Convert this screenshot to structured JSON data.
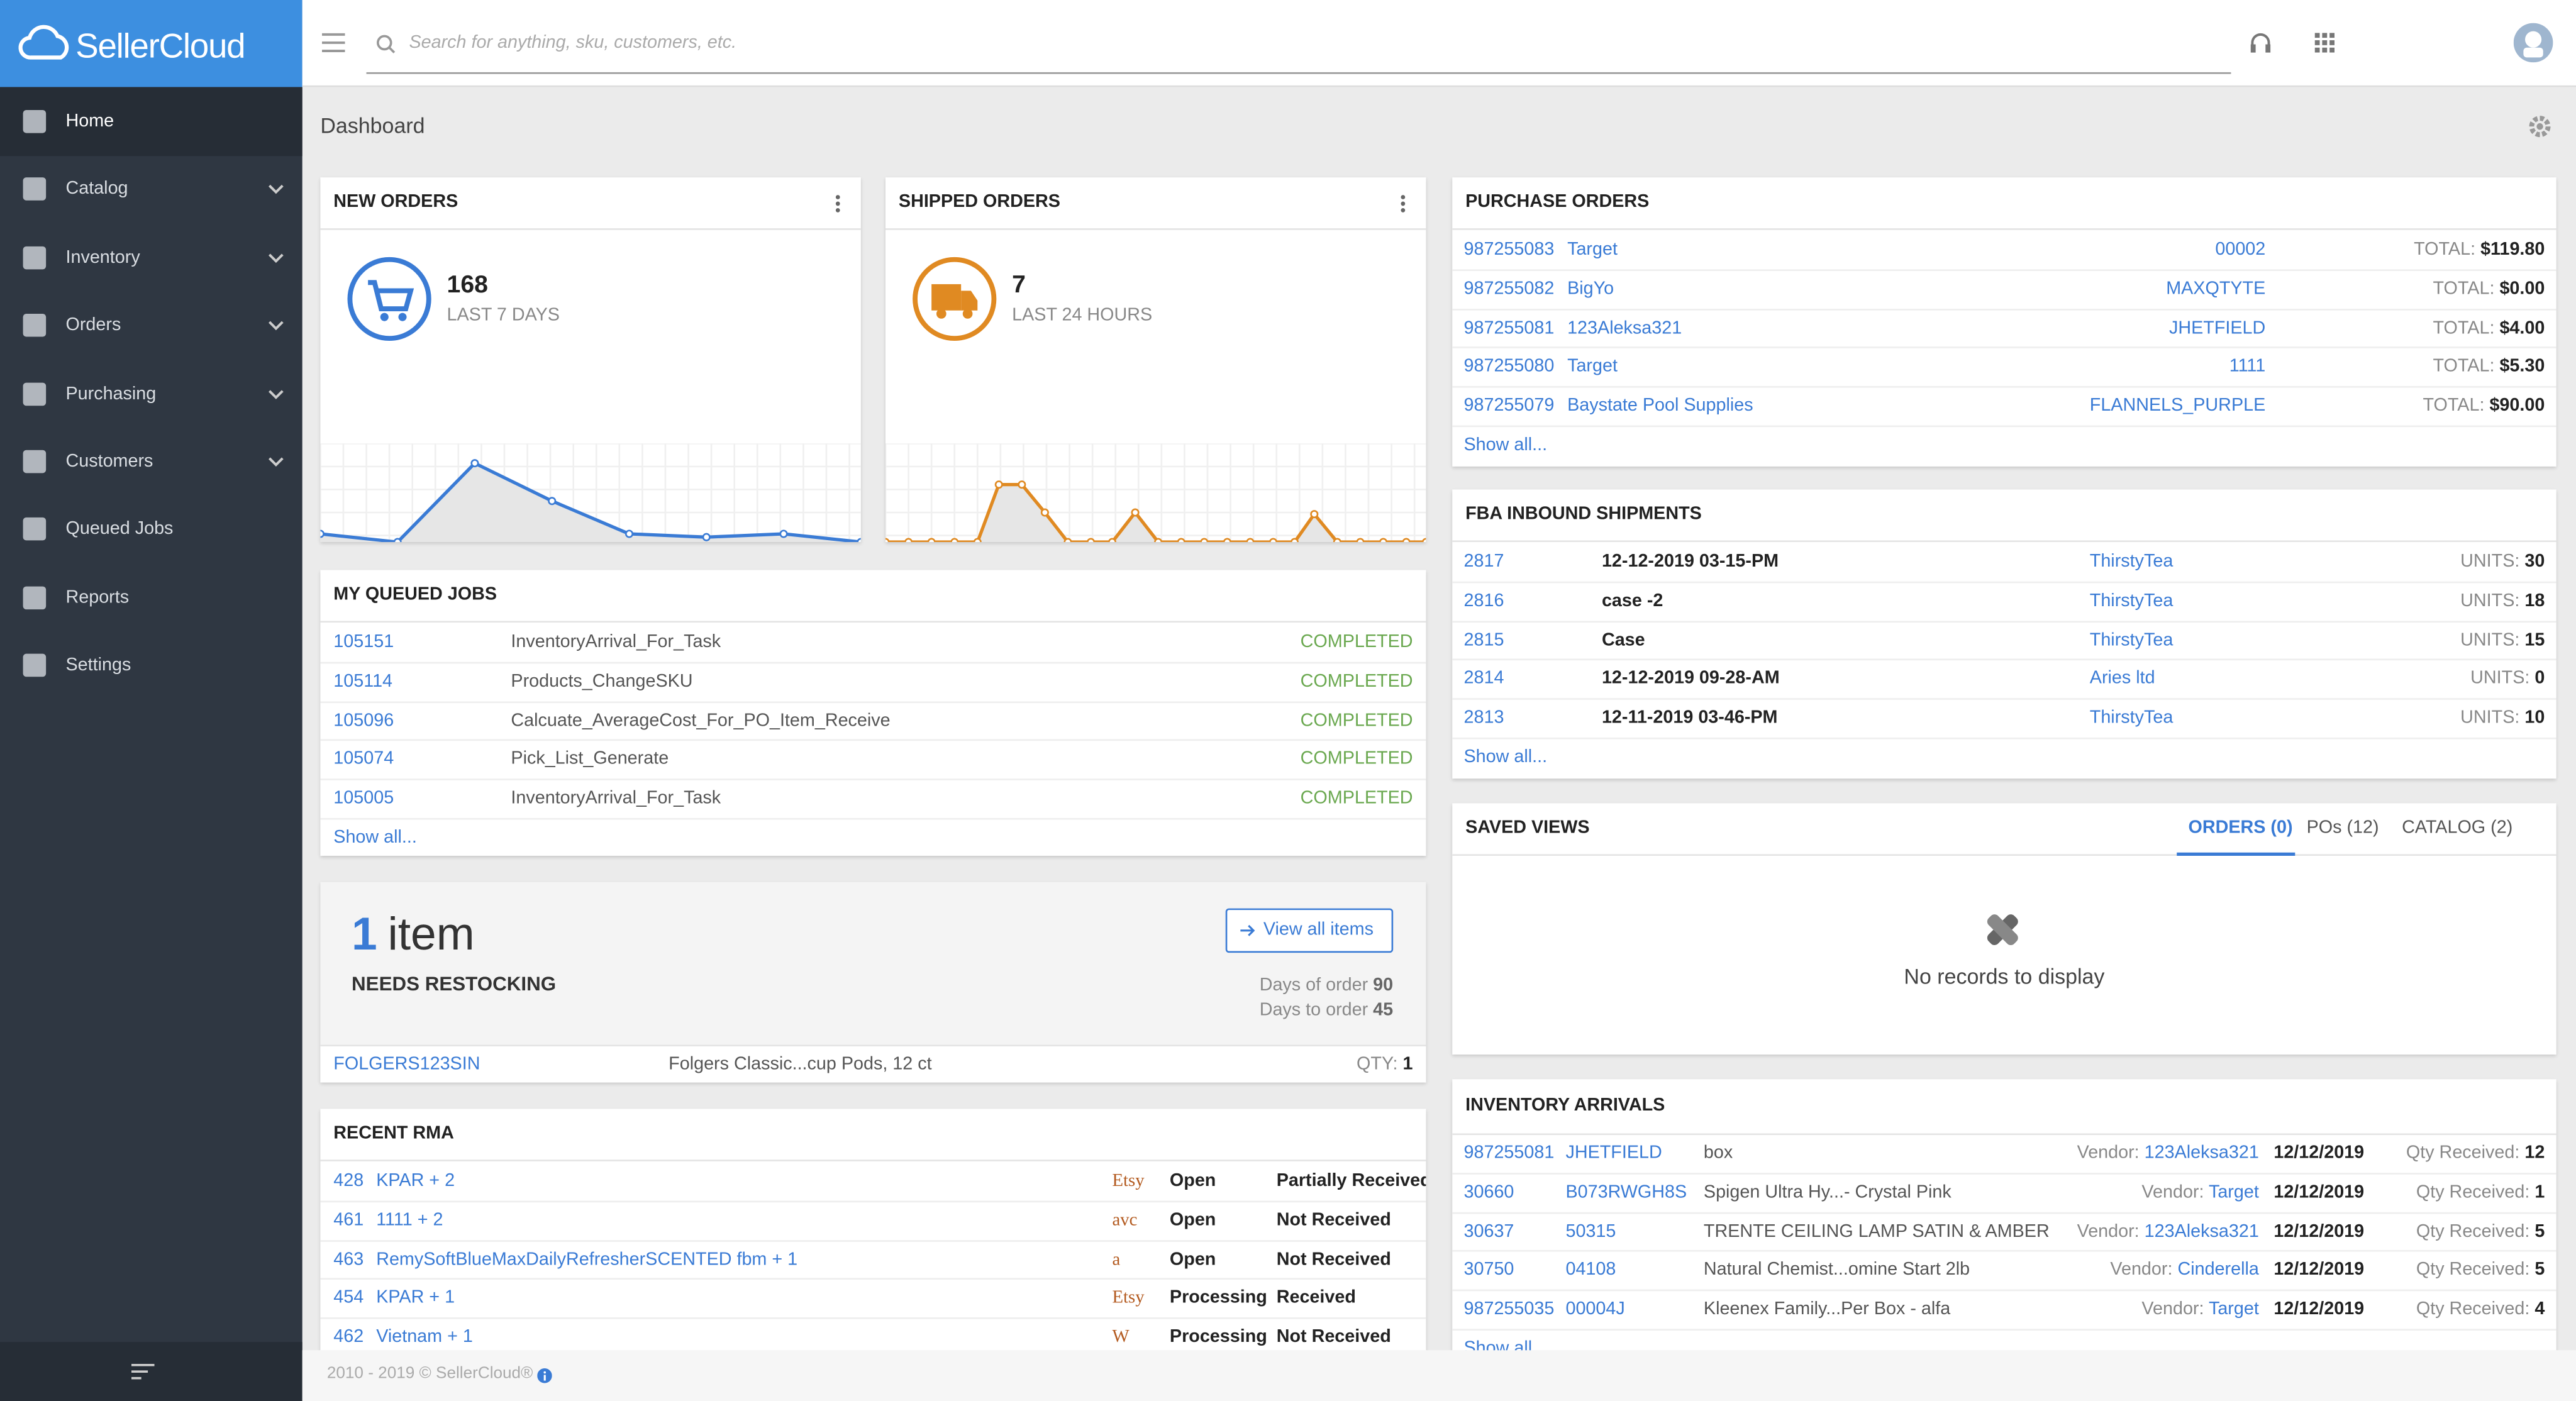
{
  "header": {
    "brand": "SellerCloud",
    "search_placeholder": "Search for anything, sku, customers, etc."
  },
  "sidebar": {
    "items": [
      "Home",
      "Catalog",
      "Inventory",
      "Orders",
      "Purchasing",
      "Customers",
      "Queued Jobs",
      "Reports",
      "Settings"
    ]
  },
  "page_title": "Dashboard",
  "new_orders": {
    "title": "NEW ORDERS",
    "count": "168",
    "period": "LAST 7 DAYS"
  },
  "shipped_orders": {
    "title": "SHIPPED ORDERS",
    "count": "7",
    "period": "LAST 24 HOURS"
  },
  "queued_jobs": {
    "title": "MY QUEUED JOBS",
    "rows": [
      [
        "105151",
        "InventoryArrival_For_Task",
        "COMPLETED"
      ],
      [
        "105114",
        "Products_ChangeSKU",
        "COMPLETED"
      ],
      [
        "105096",
        "Calcuate_AverageCost_For_PO_Item_Receive",
        "COMPLETED"
      ],
      [
        "105074",
        "Pick_List_Generate",
        "COMPLETED"
      ],
      [
        "105005",
        "InventoryArrival_For_Task",
        "COMPLETED"
      ]
    ],
    "show_all": "Show all..."
  },
  "restocking": {
    "count": "1",
    "unit": "item",
    "label": "NEEDS RESTOCKING",
    "button": "View all items",
    "days_of_order_label": "Days of order",
    "days_of_order": "90",
    "days_to_order_label": "Days to order",
    "days_to_order": "45",
    "row": {
      "sku": "FOLGERS123SIN",
      "name": "Folgers Classic...cup Pods, 12 ct",
      "qty_label": "QTY:",
      "qty": "1"
    }
  },
  "recent_rma": {
    "title": "RECENT RMA",
    "rows": [
      {
        "id": "428",
        "name": "KPAR + 2",
        "channel": "Etsy",
        "status": "Open",
        "receipt": "Partially Received"
      },
      {
        "id": "461",
        "name": "1111 + 2",
        "channel": "avc",
        "status": "Open",
        "receipt": "Not Received"
      },
      {
        "id": "463",
        "name": "RemySoftBlueMaxDailyRefresherSCENTED fbm + 1",
        "channel": "a",
        "status": "Open",
        "receipt": "Not Received"
      },
      {
        "id": "454",
        "name": "KPAR + 1",
        "channel": "Etsy",
        "status": "Processing",
        "receipt": "Received"
      },
      {
        "id": "462",
        "name": "Vietnam + 1",
        "channel": "W",
        "status": "Processing",
        "receipt": "Not Received"
      }
    ]
  },
  "purchase_orders": {
    "title": "PURCHASE ORDERS",
    "total_label": "TOTAL:",
    "rows": [
      {
        "id": "987255083",
        "vendor": "Target",
        "ref": "00002",
        "total": "$119.80"
      },
      {
        "id": "987255082",
        "vendor": "BigYo",
        "ref": "MAXQTYTE",
        "total": "$0.00"
      },
      {
        "id": "987255081",
        "vendor": "123Aleksa321",
        "ref": "JHETFIELD",
        "total": "$4.00"
      },
      {
        "id": "987255080",
        "vendor": "Target",
        "ref": "1111",
        "total": "$5.30"
      },
      {
        "id": "987255079",
        "vendor": "Baystate Pool Supplies",
        "ref": "FLANNELS_PURPLE",
        "total": "$90.00"
      }
    ],
    "show_all": "Show all..."
  },
  "fba_inbound": {
    "title": "FBA INBOUND SHIPMENTS",
    "units_label": "UNITS:",
    "rows": [
      {
        "id": "2817",
        "name": "12-12-2019 03-15-PM",
        "client": "ThirstyTea",
        "units": "30"
      },
      {
        "id": "2816",
        "name": "case -2",
        "client": "ThirstyTea",
        "units": "18"
      },
      {
        "id": "2815",
        "name": "Case",
        "client": "ThirstyTea",
        "units": "15"
      },
      {
        "id": "2814",
        "name": "12-12-2019 09-28-AM",
        "client": "Aries ltd",
        "units": "0"
      },
      {
        "id": "2813",
        "name": "12-11-2019 03-46-PM",
        "client": "ThirstyTea",
        "units": "10"
      }
    ],
    "show_all": "Show all..."
  },
  "saved_views": {
    "title": "SAVED VIEWS",
    "tabs": [
      "ORDERS (0)",
      "POs (12)",
      "CATALOG (2)"
    ],
    "empty": "No records to display"
  },
  "inventory_arrivals": {
    "title": "INVENTORY ARRIVALS",
    "vendor_label": "Vendor:",
    "qty_label": "Qty Received:",
    "rows": [
      {
        "id": "987255081",
        "sku": "JHETFIELD",
        "name": "box",
        "vendor": "123Aleksa321",
        "date": "12/12/2019",
        "qty": "12"
      },
      {
        "id": "30660",
        "sku": "B073RWGH8S",
        "name": "Spigen Ultra Hy...- Crystal Pink",
        "vendor": "Target",
        "date": "12/12/2019",
        "qty": "1"
      },
      {
        "id": "30637",
        "sku": "50315",
        "name": "TRENTE CEILING LAMP SATIN & AMBER",
        "vendor": "123Aleksa321",
        "date": "12/12/2019",
        "qty": "5"
      },
      {
        "id": "30750",
        "sku": "04108",
        "name": "Natural Chemist...omine Start 2lb",
        "vendor": "Cinderella",
        "date": "12/12/2019",
        "qty": "5"
      },
      {
        "id": "987255035",
        "sku": "00004J",
        "name": "Kleenex Family...Per Box - alfa",
        "vendor": "Target",
        "date": "12/12/2019",
        "qty": "4"
      }
    ],
    "show_all": "Show all..."
  },
  "footer": "2010 - 2019 © SellerCloud®"
}
